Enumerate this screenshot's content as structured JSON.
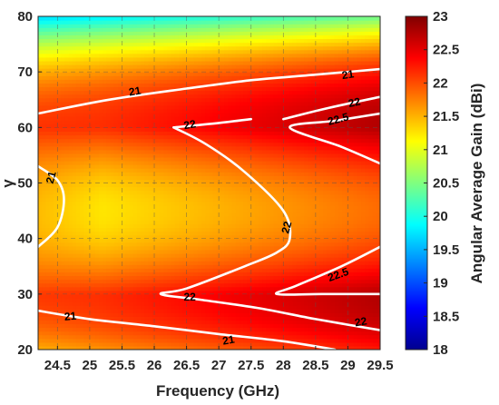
{
  "chart_data": {
    "type": "heatmap",
    "subtype": "filled-heatmap-with-contours",
    "xlabel": "Frequency (GHz)",
    "ylabel": "γ",
    "colorbar_label": "Angular Average Gain (dBi)",
    "xlim": [
      24.2,
      29.5
    ],
    "ylim": [
      20,
      80
    ],
    "clim": [
      18,
      23
    ],
    "x_ticks": [
      "24.5",
      "25",
      "25.5",
      "26",
      "26.5",
      "27",
      "27.5",
      "28",
      "28.5",
      "29",
      "29.5"
    ],
    "y_ticks": [
      "20",
      "30",
      "40",
      "50",
      "60",
      "70",
      "80"
    ],
    "colorbar_ticks": [
      "18",
      "18.5",
      "19",
      "19.5",
      "20",
      "20.5",
      "21",
      "21.5",
      "22",
      "22.5",
      "23"
    ],
    "colormap": "jet",
    "grid": true,
    "contours": [
      {
        "level": "21",
        "points": [
          [
            24.2,
            62.5
          ],
          [
            25.3,
            65
          ],
          [
            26.5,
            67
          ],
          [
            27.5,
            68.5
          ],
          [
            28.5,
            69.5
          ],
          [
            29.5,
            70.5
          ]
        ]
      },
      {
        "level": "22",
        "points": [
          [
            28.0,
            61.5
          ],
          [
            28.7,
            63.5
          ],
          [
            29.5,
            65.5
          ]
        ]
      },
      {
        "level": "22.5",
        "points": [
          [
            29.5,
            62.5
          ],
          [
            28.8,
            61.2
          ],
          [
            28.1,
            60
          ],
          [
            28.9,
            56.5
          ],
          [
            29.5,
            53.5
          ]
        ]
      },
      {
        "level": "22",
        "points": [
          [
            26.3,
            60
          ],
          [
            26.8,
            57
          ],
          [
            27.4,
            52
          ],
          [
            28.0,
            45
          ],
          [
            28.1,
            40
          ],
          [
            27.9,
            37.5
          ],
          [
            27.4,
            35
          ],
          [
            26.5,
            31
          ],
          [
            26.1,
            30
          ],
          [
            26.7,
            29
          ],
          [
            27.6,
            27.5
          ],
          [
            28.5,
            25.5
          ],
          [
            29.5,
            23.5
          ]
        ]
      },
      {
        "level": "22",
        "points": [
          [
            26.3,
            60
          ],
          [
            27.0,
            60.8
          ],
          [
            27.5,
            61.5
          ]
        ]
      },
      {
        "level": "22.5",
        "points": [
          [
            29.5,
            38.5
          ],
          [
            28.9,
            35
          ],
          [
            28.2,
            31.5
          ],
          [
            27.9,
            30
          ],
          [
            28.6,
            30
          ],
          [
            29.5,
            30
          ]
        ]
      },
      {
        "level": "21",
        "points": [
          [
            24.2,
            53
          ],
          [
            24.5,
            50.5
          ],
          [
            24.6,
            47
          ],
          [
            24.5,
            42
          ],
          [
            24.2,
            38.5
          ]
        ]
      },
      {
        "level": "21",
        "points": [
          [
            24.2,
            27
          ],
          [
            25.0,
            25.5
          ],
          [
            26.0,
            24.2
          ],
          [
            27.0,
            22.8
          ],
          [
            28.0,
            21.5
          ],
          [
            28.8,
            20
          ]
        ]
      }
    ],
    "contour_labels": [
      {
        "text": "21",
        "x": 25.7,
        "y": 66.5,
        "angle": -10
      },
      {
        "text": "21",
        "x": 29.0,
        "y": 69.5,
        "angle": -8
      },
      {
        "text": "22",
        "x": 29.1,
        "y": 64.5,
        "angle": -12
      },
      {
        "text": "22.5",
        "x": 28.85,
        "y": 61.5,
        "angle": -15
      },
      {
        "text": "22",
        "x": 26.55,
        "y": 60.5,
        "angle": -10
      },
      {
        "text": "22",
        "x": 28.05,
        "y": 42,
        "angle": -75
      },
      {
        "text": "21",
        "x": 24.4,
        "y": 51,
        "angle": -75
      },
      {
        "text": "22",
        "x": 26.55,
        "y": 29.5,
        "angle": 0
      },
      {
        "text": "22.5",
        "x": 28.85,
        "y": 33.5,
        "angle": -20
      },
      {
        "text": "22",
        "x": 29.2,
        "y": 25,
        "angle": -10
      },
      {
        "text": "21",
        "x": 24.7,
        "y": 26,
        "angle": -5
      },
      {
        "text": "21",
        "x": 27.15,
        "y": 21.7,
        "angle": -10
      }
    ]
  }
}
